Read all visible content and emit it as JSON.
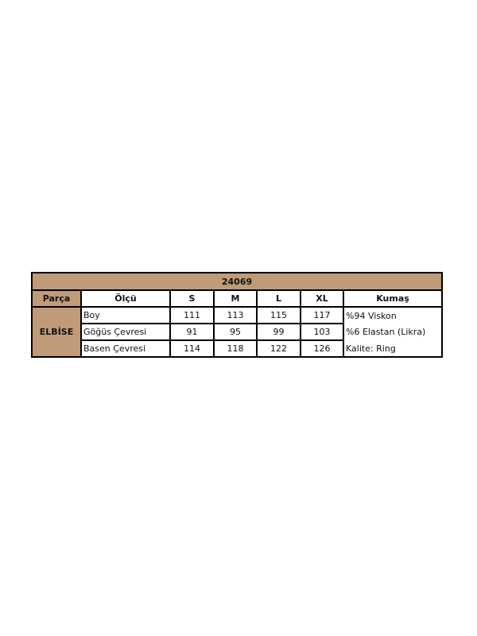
{
  "title": "24069",
  "headers": {
    "part": "Parça",
    "measure": "Ölçü",
    "s": "S",
    "m": "M",
    "l": "L",
    "xl": "XL",
    "fabric": "Kumaş"
  },
  "part": "ELBİSE",
  "rows": [
    {
      "name": "Boy",
      "s": "111",
      "m": "113",
      "l": "115",
      "xl": "117",
      "fabric": "%94 Viskon"
    },
    {
      "name": "Göğüs Çevresi",
      "s": "91",
      "m": "95",
      "l": "99",
      "xl": "103",
      "fabric": "%6 Elastan (Likra)"
    },
    {
      "name": "Basen Çevresi",
      "s": "114",
      "m": "118",
      "l": "122",
      "xl": "126",
      "fabric": "Kalite: Ring"
    }
  ],
  "colors": {
    "header_bg": "#BF9B77"
  }
}
